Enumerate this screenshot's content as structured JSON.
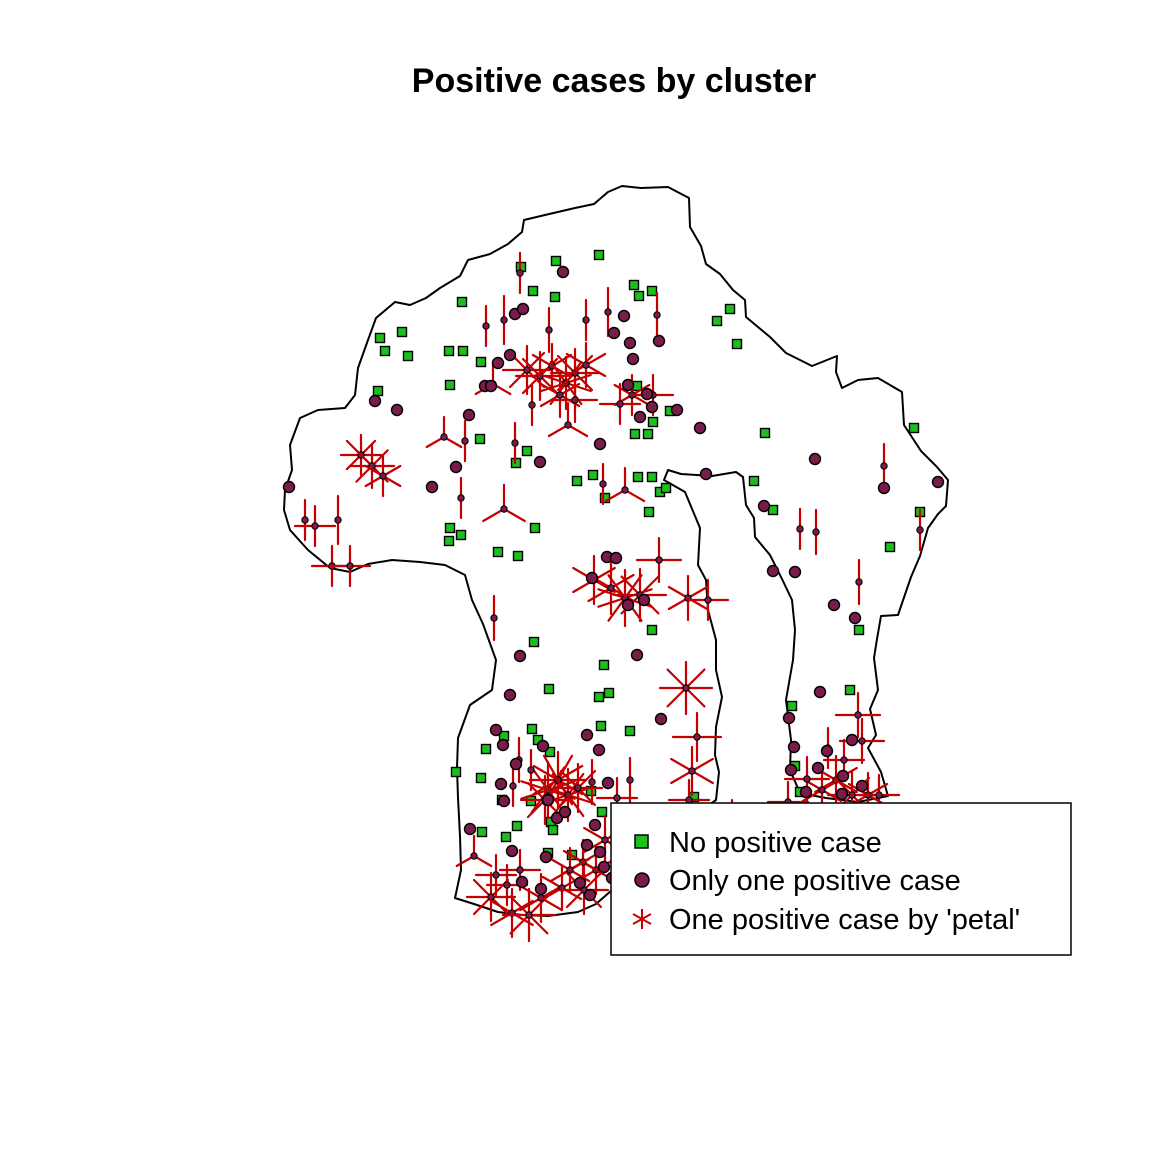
{
  "title": "Positive cases by cluster",
  "colors": {
    "no_case": "#1fbe1f",
    "one_case": "#7a1c4a",
    "petal": "#c40000",
    "outline": "#000000"
  },
  "legend": {
    "placement": "bottom-right",
    "items": [
      {
        "label": "No positive case",
        "symbol": "filled-square",
        "color": "#1fbe1f"
      },
      {
        "label": "Only one positive case",
        "symbol": "filled-circle",
        "color": "#7a1c4a"
      },
      {
        "label": "One positive case by 'petal'",
        "symbol": "asterisk",
        "color": "#c40000"
      }
    ]
  }
}
